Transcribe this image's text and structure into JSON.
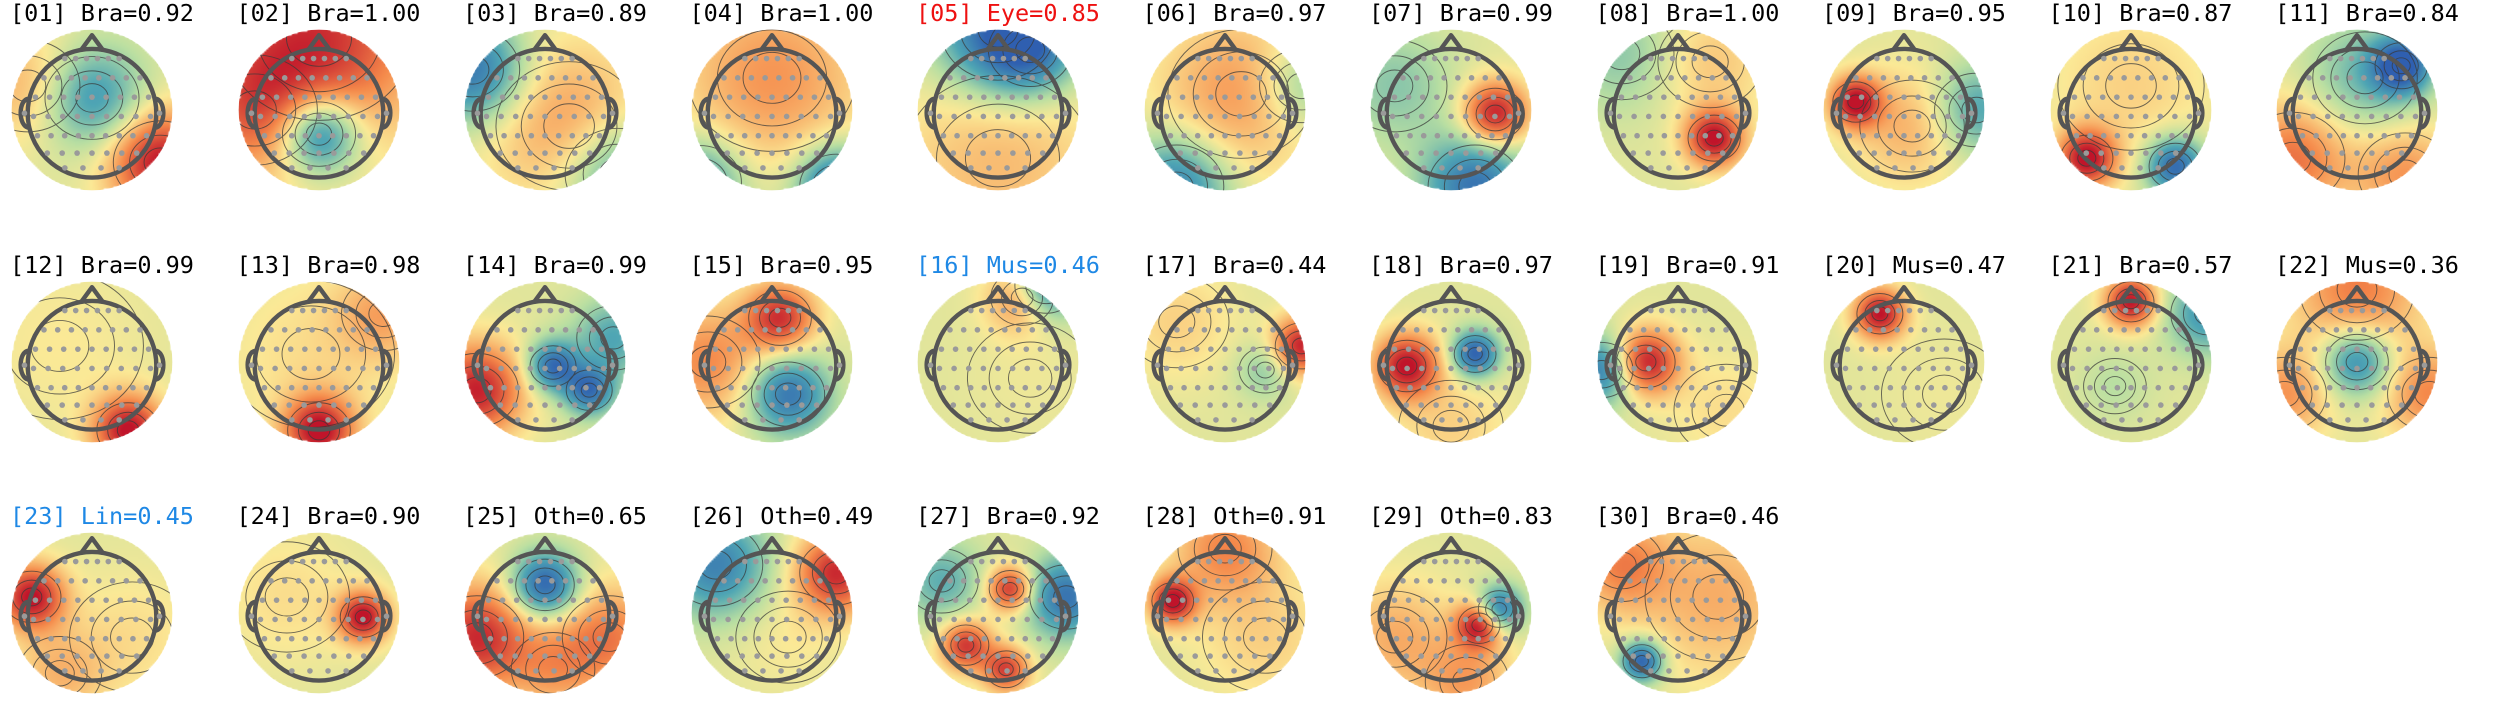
{
  "colors": {
    "default_title": "#000000",
    "eye_title": "#ee1111",
    "flagged_title": "#1e88e5",
    "scalp_red": "#c0142a",
    "scalp_orange": "#f58a4b",
    "scalp_yellow": "#fbe996",
    "scalp_green": "#b9dfa2",
    "scalp_teal": "#4fa6b4",
    "scalp_blue": "#2f5fb0",
    "head_outline": "#555555",
    "electrode": "#9a9a9a"
  },
  "components": [
    {
      "title": "[01] Bra=0.92",
      "color": "#000000",
      "spots": [
        [
          0.0,
          -0.15,
          0.45,
          -0.65
        ],
        [
          0.85,
          0.65,
          0.45,
          1.0
        ],
        [
          -0.8,
          -0.3,
          0.5,
          0.35
        ]
      ]
    },
    {
      "title": "[02] Bra=1.00",
      "color": "#000000",
      "spots": [
        [
          0.0,
          0.3,
          0.35,
          -1.0
        ],
        [
          0.0,
          -0.9,
          0.9,
          0.85
        ],
        [
          -0.8,
          0.0,
          0.6,
          0.5
        ]
      ]
    },
    {
      "title": "[03] Bra=0.89",
      "color": "#000000",
      "spots": [
        [
          -0.9,
          -0.5,
          0.45,
          -0.85
        ],
        [
          0.9,
          0.8,
          0.5,
          -0.6
        ],
        [
          0.3,
          0.2,
          0.7,
          0.45
        ]
      ]
    },
    {
      "title": "[04] Bra=1.00",
      "color": "#000000",
      "spots": [
        [
          0.0,
          -0.4,
          0.8,
          0.45
        ],
        [
          0.8,
          0.95,
          0.35,
          -0.9
        ],
        [
          -0.9,
          0.9,
          0.4,
          -0.6
        ]
      ]
    },
    {
      "title": "[05] Eye=0.85",
      "color": "#ee1111",
      "spots": [
        [
          0.0,
          -1.0,
          0.55,
          -0.9
        ],
        [
          0.4,
          -0.75,
          0.4,
          -0.6
        ],
        [
          0.0,
          0.6,
          0.9,
          0.3
        ]
      ]
    },
    {
      "title": "[06] Bra=0.97",
      "color": "#000000",
      "spots": [
        [
          0.2,
          -0.2,
          0.7,
          0.45
        ],
        [
          -0.6,
          0.95,
          0.45,
          -0.75
        ],
        [
          0.95,
          -0.3,
          0.4,
          -0.4
        ]
      ]
    },
    {
      "title": "[07] Bra=0.99",
      "color": "#000000",
      "spots": [
        [
          0.55,
          0.05,
          0.28,
          1.0
        ],
        [
          0.3,
          0.95,
          0.45,
          -0.85
        ],
        [
          -0.7,
          -0.3,
          0.5,
          -0.3
        ]
      ]
    },
    {
      "title": "[08] Bra=1.00",
      "color": "#000000",
      "spots": [
        [
          0.45,
          0.35,
          0.25,
          1.0
        ],
        [
          -0.7,
          -0.7,
          0.5,
          -0.3
        ],
        [
          0.4,
          -0.6,
          0.5,
          0.25
        ]
      ]
    },
    {
      "title": "[09] Bra=0.95",
      "color": "#000000",
      "spots": [
        [
          -0.6,
          -0.1,
          0.22,
          1.0
        ],
        [
          0.1,
          0.2,
          0.5,
          0.35
        ],
        [
          0.9,
          0.0,
          0.4,
          -0.55
        ]
      ]
    },
    {
      "title": "[10] Bra=0.87",
      "color": "#000000",
      "spots": [
        [
          -0.55,
          0.6,
          0.25,
          1.0
        ],
        [
          0.55,
          0.7,
          0.25,
          -0.95
        ],
        [
          0.0,
          -0.3,
          0.7,
          0.2
        ]
      ]
    },
    {
      "title": "[11] Bra=0.84",
      "color": "#000000",
      "spots": [
        [
          0.55,
          -0.55,
          0.25,
          -1.0
        ],
        [
          0.1,
          -0.4,
          0.5,
          -0.4
        ],
        [
          -0.8,
          0.6,
          0.5,
          0.6
        ],
        [
          0.6,
          0.8,
          0.45,
          0.45
        ]
      ]
    },
    {
      "title": "[12] Bra=0.99",
      "color": "#000000",
      "spots": [
        [
          0.45,
          0.85,
          0.3,
          1.0
        ],
        [
          -0.4,
          -0.2,
          0.8,
          0.1
        ]
      ]
    },
    {
      "title": "[13] Bra=0.98",
      "color": "#000000",
      "spots": [
        [
          0.0,
          0.85,
          0.3,
          1.0
        ],
        [
          -0.1,
          -0.1,
          0.8,
          0.15
        ],
        [
          0.8,
          -0.6,
          0.4,
          0.35
        ]
      ]
    },
    {
      "title": "[14] Bra=0.99",
      "color": "#000000",
      "spots": [
        [
          -0.85,
          0.35,
          0.4,
          0.95
        ],
        [
          0.1,
          0.05,
          0.22,
          -0.9
        ],
        [
          0.55,
          0.35,
          0.22,
          -0.85
        ],
        [
          0.85,
          -0.3,
          0.35,
          -0.5
        ]
      ]
    },
    {
      "title": "[15] Bra=0.95",
      "color": "#000000",
      "spots": [
        [
          0.1,
          -0.55,
          0.3,
          0.85
        ],
        [
          0.2,
          0.4,
          0.35,
          -0.85
        ],
        [
          -0.8,
          0.0,
          0.5,
          0.5
        ]
      ]
    },
    {
      "title": "[16] Mus=0.46",
      "color": "#1e88e5",
      "spots": [
        [
          0.6,
          -0.95,
          0.3,
          -0.9
        ],
        [
          0.3,
          -0.8,
          0.3,
          0.6
        ],
        [
          0.4,
          0.2,
          0.6,
          0.05
        ]
      ]
    },
    {
      "title": "[17] Bra=0.44",
      "color": "#000000",
      "spots": [
        [
          0.95,
          -0.2,
          0.25,
          0.95
        ],
        [
          0.5,
          0.1,
          0.25,
          -0.3
        ],
        [
          -0.6,
          -0.5,
          0.5,
          0.2
        ]
      ]
    },
    {
      "title": "[18] Bra=0.97",
      "color": "#000000",
      "spots": [
        [
          -0.55,
          0.05,
          0.28,
          1.0
        ],
        [
          0.3,
          -0.1,
          0.2,
          -1.0
        ],
        [
          0.0,
          0.8,
          0.5,
          0.2
        ]
      ]
    },
    {
      "title": "[19] Bra=0.91",
      "color": "#000000",
      "spots": [
        [
          -0.4,
          0.0,
          0.28,
          1.0
        ],
        [
          -0.95,
          0.1,
          0.3,
          -0.8
        ],
        [
          0.6,
          0.6,
          0.5,
          0.15
        ]
      ]
    },
    {
      "title": "[20] Mus=0.47",
      "color": "#000000",
      "spots": [
        [
          -0.3,
          -0.6,
          0.22,
          1.0
        ],
        [
          0.5,
          0.4,
          0.6,
          0.05
        ]
      ]
    },
    {
      "title": "[21] Bra=0.57",
      "color": "#000000",
      "spots": [
        [
          0.0,
          -0.75,
          0.22,
          1.0
        ],
        [
          0.95,
          -0.6,
          0.35,
          -0.6
        ],
        [
          -0.2,
          0.3,
          0.3,
          -0.15
        ]
      ]
    },
    {
      "title": "[22] Mus=0.36",
      "color": "#000000",
      "spots": [
        [
          0.0,
          0.0,
          0.3,
          -0.75
        ],
        [
          0.0,
          -0.9,
          0.55,
          0.55
        ],
        [
          0.9,
          0.4,
          0.4,
          0.5
        ],
        [
          -0.9,
          0.4,
          0.4,
          0.45
        ]
      ]
    },
    {
      "title": "[23] Lin=0.45",
      "color": "#1e88e5",
      "spots": [
        [
          -0.75,
          -0.2,
          0.28,
          1.0
        ],
        [
          0.5,
          0.3,
          0.6,
          0.15
        ],
        [
          -0.4,
          0.75,
          0.4,
          0.3
        ]
      ]
    },
    {
      "title": "[24] Bra=0.90",
      "color": "#000000",
      "spots": [
        [
          0.55,
          0.05,
          0.22,
          1.0
        ],
        [
          -0.4,
          -0.2,
          0.6,
          0.15
        ]
      ]
    },
    {
      "title": "[25] Oth=0.65",
      "color": "#000000",
      "spots": [
        [
          0.0,
          -0.35,
          0.28,
          -1.0
        ],
        [
          -0.85,
          0.3,
          0.45,
          0.9
        ],
        [
          0.8,
          0.3,
          0.45,
          0.55
        ],
        [
          0.1,
          0.7,
          0.4,
          0.35
        ]
      ]
    },
    {
      "title": "[26] Oth=0.49",
      "color": "#000000",
      "spots": [
        [
          -0.7,
          -0.6,
          0.45,
          -0.75
        ],
        [
          0.8,
          -0.5,
          0.35,
          0.9
        ],
        [
          0.2,
          0.3,
          0.5,
          0.1
        ]
      ]
    },
    {
      "title": "[27] Bra=0.92",
      "color": "#000000",
      "spots": [
        [
          0.15,
          -0.3,
          0.2,
          0.9
        ],
        [
          -0.4,
          0.4,
          0.22,
          0.85
        ],
        [
          0.1,
          0.7,
          0.2,
          0.8
        ],
        [
          0.85,
          -0.2,
          0.35,
          -0.85
        ],
        [
          -0.7,
          -0.4,
          0.35,
          -0.45
        ]
      ]
    },
    {
      "title": "[28] Oth=0.91",
      "color": "#000000",
      "spots": [
        [
          -0.65,
          -0.15,
          0.2,
          1.0
        ],
        [
          0.5,
          0.3,
          0.6,
          0.2
        ],
        [
          0.0,
          -0.8,
          0.45,
          0.5
        ]
      ]
    },
    {
      "title": "[29] Oth=0.83",
      "color": "#000000",
      "spots": [
        [
          0.35,
          0.15,
          0.2,
          1.0
        ],
        [
          0.6,
          -0.05,
          0.2,
          -0.9
        ],
        [
          -0.7,
          0.3,
          0.5,
          0.35
        ],
        [
          0.2,
          0.85,
          0.4,
          0.4
        ]
      ]
    },
    {
      "title": "[30] Bra=0.46",
      "color": "#000000",
      "spots": [
        [
          -0.45,
          0.6,
          0.18,
          -1.0
        ],
        [
          0.5,
          -0.2,
          0.7,
          0.35
        ],
        [
          -0.7,
          -0.6,
          0.4,
          0.5
        ]
      ]
    }
  ]
}
